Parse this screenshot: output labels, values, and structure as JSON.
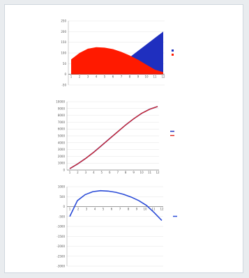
{
  "chart_data": [
    {
      "type": "area",
      "x": [
        1,
        2,
        3,
        4,
        5,
        6,
        7,
        8,
        9,
        10,
        11,
        12
      ],
      "ylim": [
        -50,
        250
      ],
      "yticks": [
        "250",
        "200",
        "150",
        "100",
        "50",
        "0",
        "-50"
      ],
      "xticks": [
        "1",
        "2",
        "3",
        "4",
        "5",
        "6",
        "7",
        "8",
        "9",
        "10",
        "11",
        "12"
      ],
      "series": [
        {
          "name": "",
          "values": [
            0,
            0,
            0,
            0,
            0,
            10,
            40,
            80,
            110,
            140,
            170,
            200
          ],
          "color": "#1f2fbf"
        },
        {
          "name": "",
          "values": [
            70,
            100,
            120,
            127,
            125,
            118,
            105,
            88,
            68,
            45,
            22,
            10
          ],
          "color": "#ff1a00"
        }
      ],
      "legend_position": "right",
      "grid": true
    },
    {
      "type": "line",
      "x": [
        1,
        2,
        3,
        4,
        5,
        6,
        7,
        8,
        9,
        10,
        11,
        12
      ],
      "ylim": [
        0,
        10000
      ],
      "yticks": [
        "10000",
        "9000",
        "8000",
        "7000",
        "6000",
        "5000",
        "4000",
        "3000",
        "2000",
        "1000",
        "0"
      ],
      "xticks": [
        "1",
        "2",
        "3",
        "4",
        "5",
        "6",
        "7",
        "8",
        "9",
        "10",
        "11",
        "12"
      ],
      "series": [
        {
          "name": "",
          "values": [
            200,
            900,
            1700,
            2600,
            3600,
            4600,
            5600,
            6600,
            7500,
            8300,
            8900,
            9300
          ],
          "color": "#1f2fbf"
        },
        {
          "name": "",
          "values": [
            200,
            900,
            1700,
            2600,
            3600,
            4600,
            5600,
            6600,
            7500,
            8300,
            8900,
            9300
          ],
          "color": "#e0241b"
        }
      ],
      "legend_position": "right",
      "grid": true
    },
    {
      "type": "line",
      "x": [
        0,
        1,
        2,
        3,
        4,
        5,
        6,
        7,
        8,
        9,
        10,
        11,
        12
      ],
      "ylim": [
        -3000,
        1000
      ],
      "yticks": [
        "1000",
        "500",
        "0",
        "-500",
        "-1000",
        "-1500",
        "-2000",
        "-2500",
        "-3000"
      ],
      "xticks": [
        "1",
        "2",
        "3",
        "4",
        "5",
        "6",
        "7",
        "8",
        "9",
        "10",
        "11",
        "12"
      ],
      "series": [
        {
          "name": "",
          "values": [
            -500,
            300,
            600,
            750,
            800,
            780,
            720,
            620,
            480,
            300,
            60,
            -300,
            -700
          ],
          "color": "#2a4bd7"
        }
      ],
      "legend_position": "right",
      "grid": true
    }
  ]
}
